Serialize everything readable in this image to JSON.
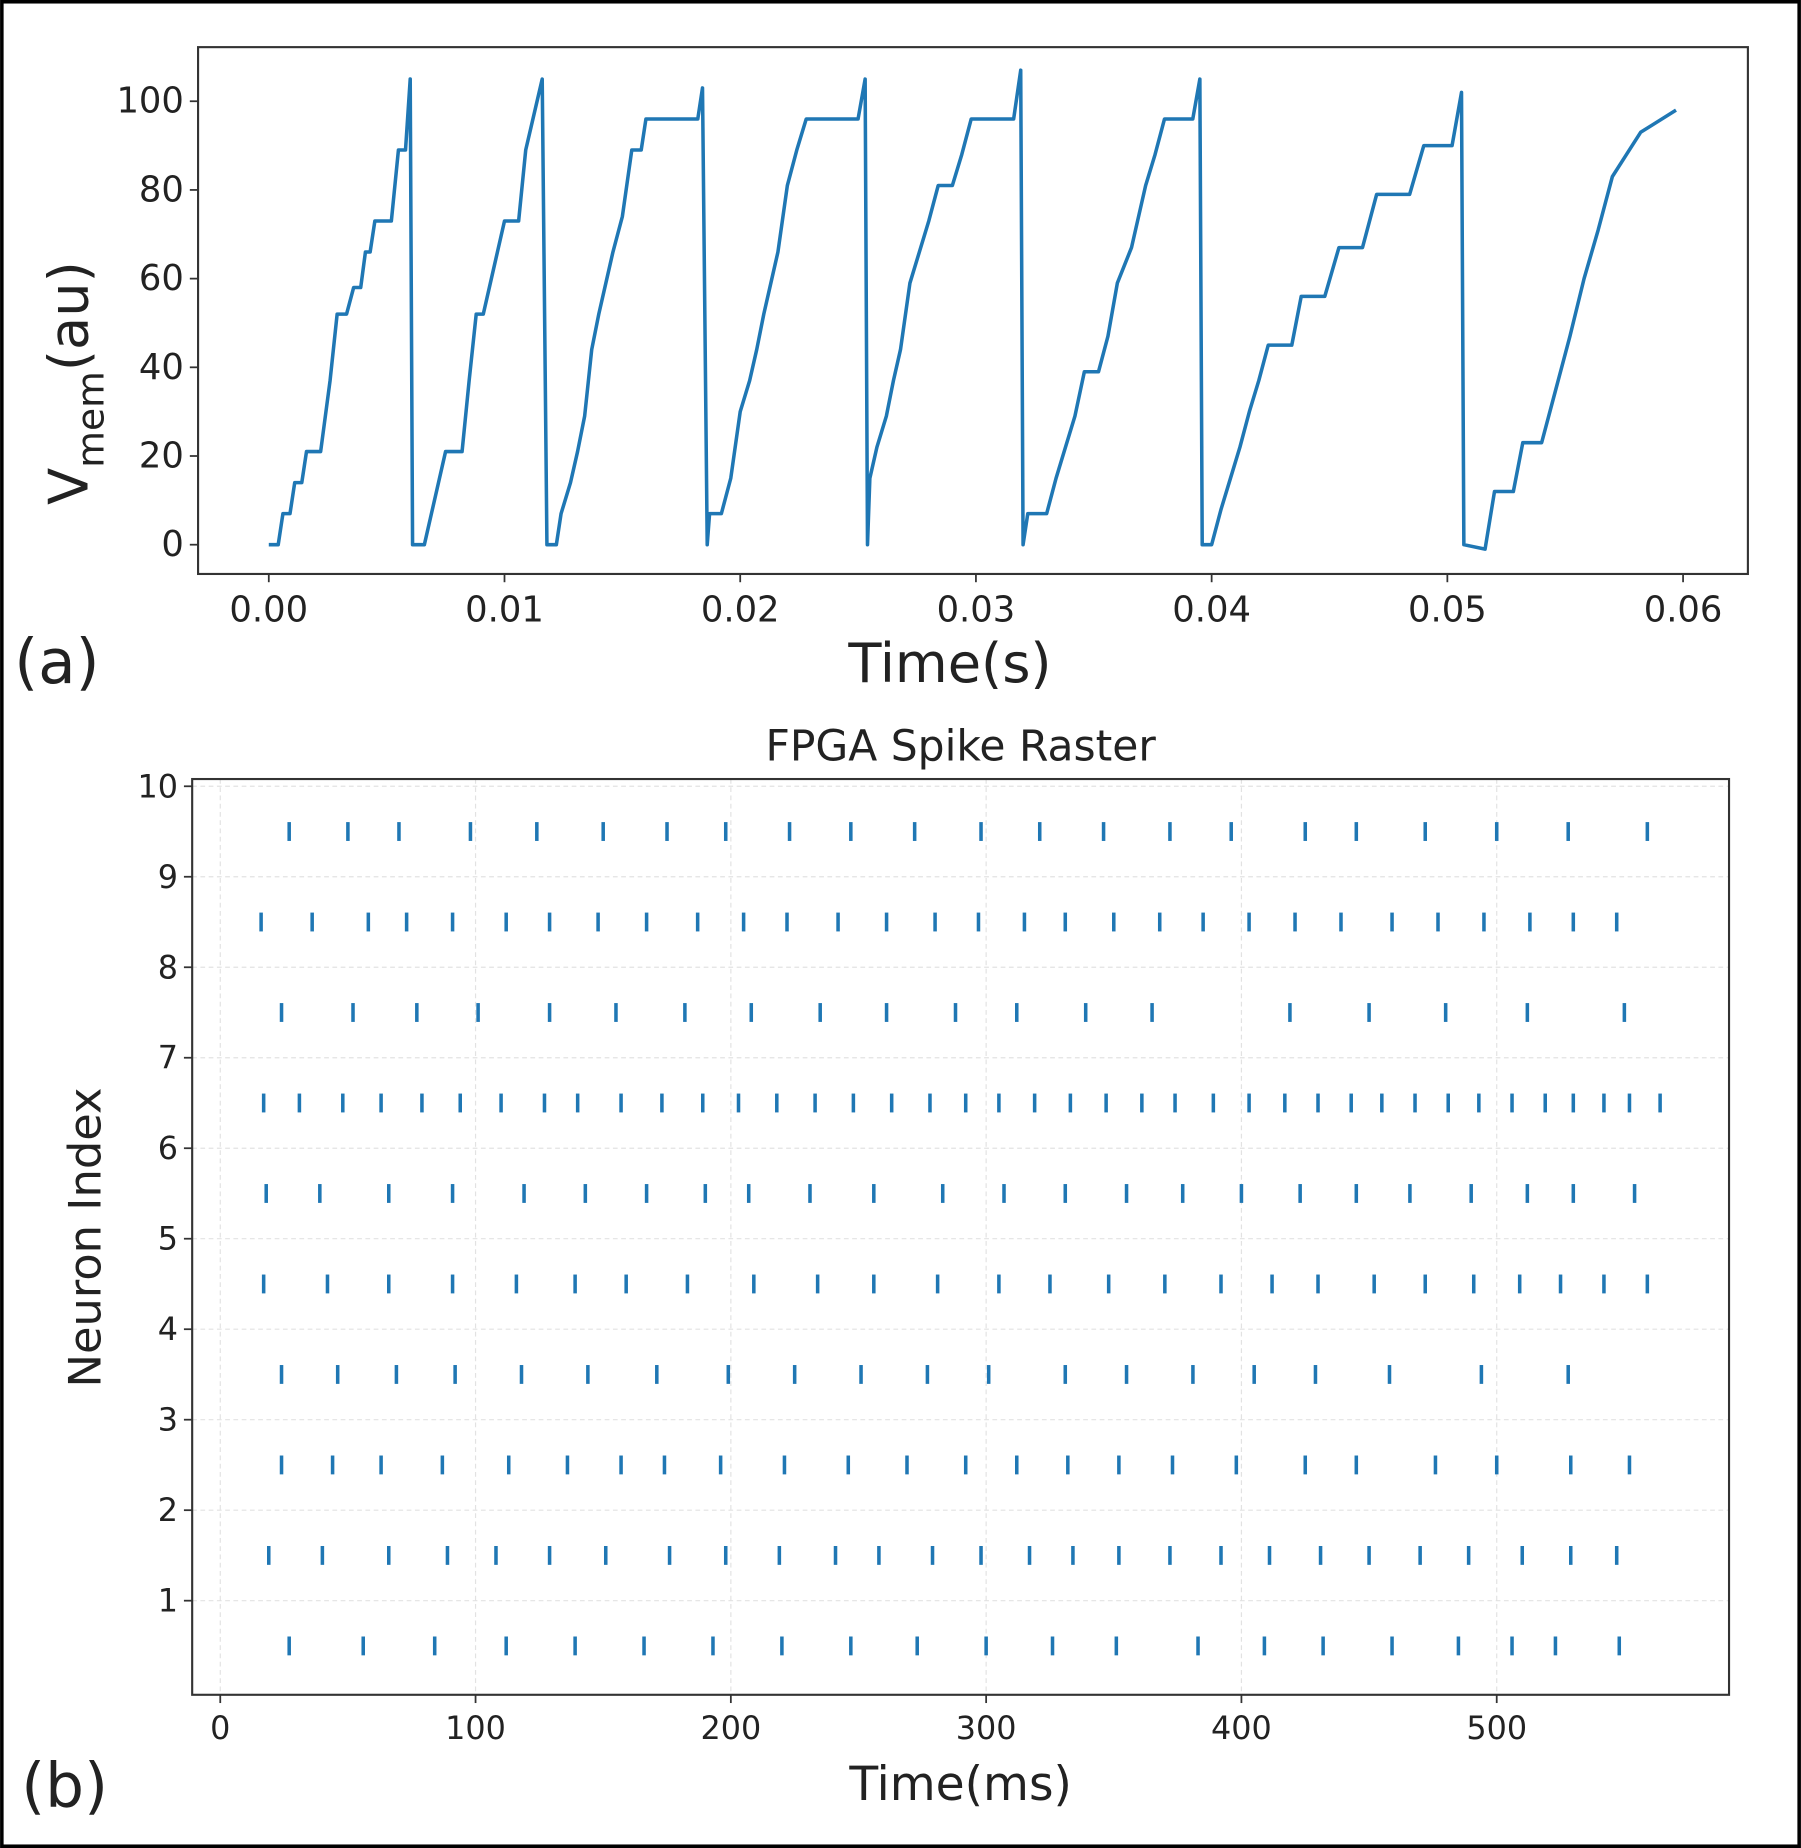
{
  "chart_data": [
    {
      "type": "line",
      "panel_label": "(a)",
      "xlabel": "Time(s)",
      "ylabel": [
        "V",
        "mem",
        "(au)"
      ],
      "color": "#1f77b4",
      "grid": false,
      "x": [
        0,
        0.0004,
        0.0006,
        0.0009,
        0.0011,
        0.0014,
        0.0016,
        0.0022,
        0.0026,
        0.0029,
        0.0033,
        0.0036,
        0.0039,
        0.0041,
        0.0043,
        0.0045,
        0.0052,
        0.0055,
        0.0058,
        0.006,
        0.0061,
        0.0066,
        0.0069,
        0.0072,
        0.0075,
        0.0082,
        0.0085,
        0.0088,
        0.0091,
        0.0094,
        0.0097,
        0.01,
        0.0106,
        0.0109,
        0.0116,
        0.0118,
        0.0122,
        0.0124,
        0.0128,
        0.0131,
        0.0134,
        0.0137,
        0.014,
        0.0143,
        0.0146,
        0.015,
        0.0154,
        0.0158,
        0.016,
        0.0182,
        0.0184,
        0.0186,
        0.0187,
        0.0192,
        0.0196,
        0.02,
        0.0204,
        0.0207,
        0.021,
        0.0213,
        0.0216,
        0.022,
        0.0224,
        0.0228,
        0.025,
        0.0253,
        0.0254,
        0.0255,
        0.0258,
        0.0262,
        0.0265,
        0.0268,
        0.0272,
        0.0276,
        0.028,
        0.0284,
        0.029,
        0.0294,
        0.0298,
        0.0316,
        0.0319,
        0.032,
        0.0322,
        0.033,
        0.0334,
        0.0338,
        0.0342,
        0.0346,
        0.0352,
        0.0356,
        0.036,
        0.0366,
        0.0372,
        0.0376,
        0.038,
        0.0392,
        0.0395,
        0.0396,
        0.04,
        0.0404,
        0.0408,
        0.0412,
        0.0416,
        0.042,
        0.0424,
        0.0434,
        0.0438,
        0.0448,
        0.0454,
        0.0464,
        0.047,
        0.0484,
        0.049,
        0.0502,
        0.0506,
        0.0507,
        0.0516,
        0.052,
        0.0528,
        0.0532,
        0.054,
        0.0546,
        0.0552,
        0.0558,
        0.0564,
        0.057,
        0.0576,
        0.0582,
        0.0597
      ],
      "values": [
        0,
        0,
        7,
        7,
        14,
        14,
        21,
        21,
        37,
        52,
        52,
        58,
        58,
        66,
        66,
        73,
        73,
        89,
        89,
        105,
        0,
        0,
        7,
        14,
        21,
        21,
        37,
        52,
        52,
        59,
        66,
        73,
        73,
        89,
        105,
        0,
        0,
        7,
        14,
        21,
        29,
        44,
        52,
        59,
        66,
        74,
        89,
        89,
        96,
        96,
        103,
        0,
        7,
        7,
        15,
        30,
        37,
        44,
        52,
        59,
        66,
        81,
        89,
        96,
        96,
        105,
        0,
        15,
        22,
        29,
        37,
        44,
        59,
        66,
        73,
        81,
        81,
        88,
        96,
        96,
        107,
        0,
        7,
        7,
        15,
        22,
        29,
        39,
        39,
        47,
        59,
        67,
        81,
        88,
        96,
        96,
        105,
        0,
        0,
        8,
        15,
        22,
        30,
        37,
        45,
        45,
        56,
        56,
        67,
        67,
        79,
        79,
        90,
        90,
        102,
        0,
        -1,
        12,
        12,
        23,
        23,
        35,
        47,
        60,
        71,
        83,
        88,
        93,
        98
      ],
      "xlim": [
        -0.003,
        0.06275
      ],
      "ylim": [
        -6.6,
        112.2
      ],
      "xticks": [
        {
          "value": 0,
          "label": "0.00"
        },
        0.01,
        0.02,
        0.03,
        0.04,
        0.05,
        0.06
      ],
      "yticks": [
        0,
        20,
        40,
        60,
        80,
        100
      ]
    },
    {
      "type": "eventplot",
      "panel_label": "(b)",
      "title": "FPGA Spike Raster",
      "xlabel": "Time(ms)",
      "ylabel": "Neuron Index",
      "color": "#1f77b4",
      "grid": true,
      "lineoffsets": [
        0.5,
        1.5,
        2.5,
        3.5,
        4.5,
        5.5,
        6.5,
        7.5,
        8.5,
        9.5
      ],
      "series": [
        {
          "values": [
            27,
            56,
            84,
            112,
            139,
            166,
            193,
            220,
            247,
            273,
            300,
            326,
            351,
            383,
            409,
            432,
            459,
            485,
            506,
            523,
            548
          ]
        },
        {
          "values": [
            19,
            40,
            66,
            89,
            108,
            129,
            151,
            176,
            198,
            219,
            241,
            258,
            279,
            298,
            317,
            334,
            352,
            372,
            392,
            411,
            431,
            450,
            470,
            489,
            510,
            529,
            547
          ]
        },
        {
          "values": [
            24,
            44,
            63,
            87,
            113,
            136,
            157,
            174,
            196,
            221,
            246,
            269,
            292,
            312,
            332,
            352,
            373,
            398,
            425,
            445,
            476,
            500,
            529,
            552
          ]
        },
        {
          "values": [
            24,
            46,
            69,
            92,
            118,
            144,
            171,
            199,
            225,
            251,
            277,
            301,
            331,
            355,
            381,
            405,
            429,
            458,
            494,
            528
          ]
        },
        {
          "values": [
            17,
            42,
            66,
            91,
            116,
            139,
            159,
            183,
            209,
            234,
            256,
            281,
            305,
            325,
            348,
            370,
            392,
            412,
            430,
            452,
            472,
            491,
            509,
            525,
            542,
            559
          ]
        },
        {
          "values": [
            18,
            39,
            66,
            91,
            119,
            143,
            167,
            190,
            207,
            231,
            256,
            283,
            307,
            331,
            355,
            377,
            400,
            423,
            445,
            466,
            490,
            512,
            530,
            554
          ]
        },
        {
          "values": [
            17,
            31,
            48,
            63,
            79,
            94,
            110,
            127,
            140,
            157,
            173,
            189,
            203,
            218,
            233,
            248,
            263,
            278,
            292,
            305,
            319,
            333,
            347,
            361,
            374,
            389,
            403,
            417,
            430,
            443,
            455,
            468,
            481,
            493,
            506,
            519,
            530,
            542,
            552,
            564
          ]
        },
        {
          "values": [
            24,
            52,
            77,
            101,
            129,
            155,
            182,
            208,
            235,
            261,
            288,
            312,
            339,
            365,
            419,
            450,
            480,
            512,
            550
          ]
        },
        {
          "values": [
            16,
            36,
            58,
            73,
            91,
            112,
            129,
            148,
            167,
            187,
            205,
            222,
            242,
            261,
            280,
            297,
            315,
            331,
            350,
            368,
            385,
            403,
            421,
            439,
            459,
            477,
            495,
            513,
            530,
            547
          ]
        },
        {
          "values": [
            27,
            50,
            70,
            98,
            124,
            150,
            175,
            198,
            223,
            247,
            272,
            298,
            321,
            346,
            372,
            396,
            425,
            445,
            472,
            500,
            528,
            559
          ]
        }
      ],
      "xlim": [
        -11,
        591
      ],
      "ylim": [
        -0.04,
        10.08
      ],
      "xticks": [
        0,
        100,
        200,
        300,
        400,
        500
      ],
      "yticks": [
        1,
        2,
        3,
        4,
        5,
        6,
        7,
        8,
        9,
        10
      ]
    }
  ]
}
